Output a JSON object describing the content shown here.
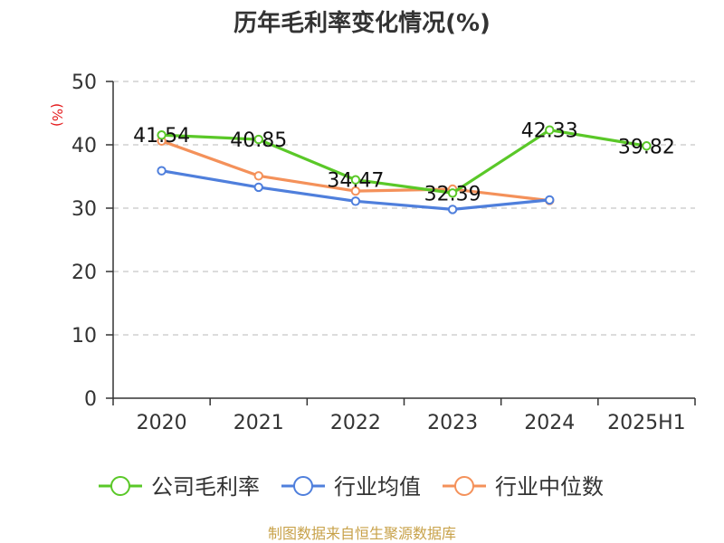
{
  "chart_data": {
    "type": "line",
    "title": "历年毛利率变化情况(%)",
    "ylabel": "(%)",
    "xlabel": "",
    "categories": [
      "2020",
      "2021",
      "2022",
      "2023",
      "2024",
      "2025H1"
    ],
    "ylim": [
      0,
      50
    ],
    "yticks": [
      0,
      10,
      20,
      30,
      40,
      50
    ],
    "grid": true,
    "legend_position": "bottom",
    "series": [
      {
        "name": "公司毛利率",
        "color": "#5ac828",
        "values": [
          41.54,
          40.85,
          34.47,
          32.39,
          42.33,
          39.82
        ],
        "labels": [
          "41.54",
          "40.85",
          "34.47",
          "32.39",
          "42.33",
          "39.82"
        ]
      },
      {
        "name": "行业均值",
        "color": "#4f7fdc",
        "values": [
          35.9,
          33.3,
          31.1,
          29.8,
          31.3,
          null
        ]
      },
      {
        "name": "行业中位数",
        "color": "#f4915a",
        "values": [
          40.6,
          35.1,
          32.7,
          33.0,
          31.2,
          null
        ]
      }
    ],
    "source": "制图数据来自恒生聚源数据库"
  }
}
